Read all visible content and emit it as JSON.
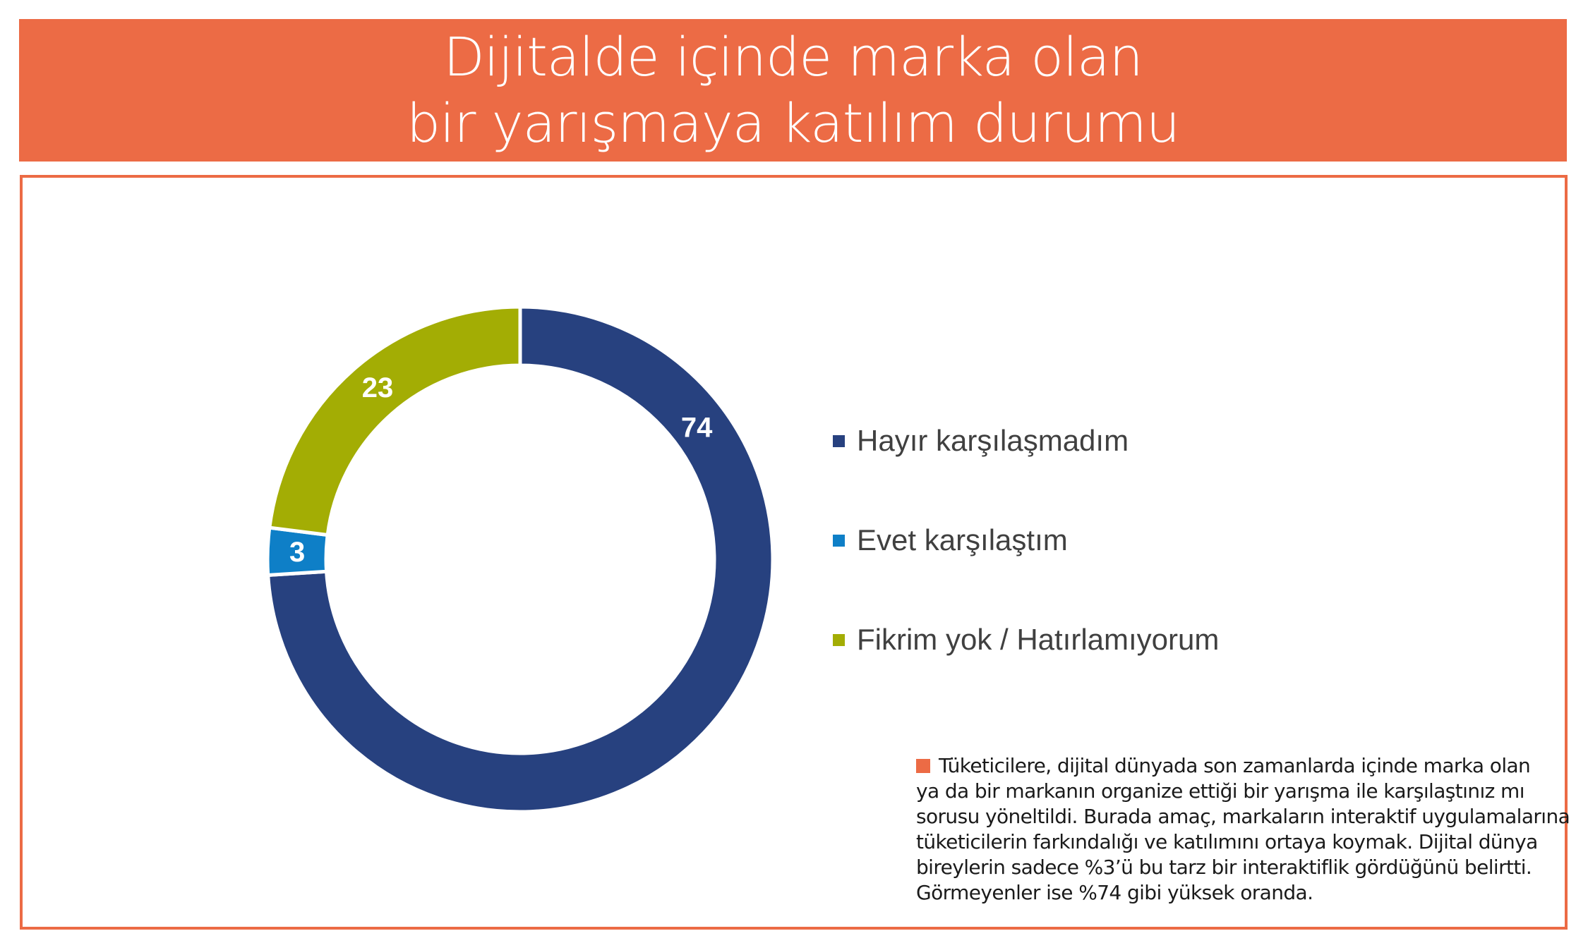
{
  "header": {
    "title_line1": "Dijitalde içinde marka olan",
    "title_line2": "bir yarışmaya katılım durumu"
  },
  "colors": {
    "accent": "#ec6b45",
    "navy": "#27417f",
    "blue": "#0e7fc7",
    "olive": "#a3ad04"
  },
  "chart_data": {
    "type": "pie",
    "variant": "donut",
    "title": "",
    "legend_position": "right",
    "series": [
      {
        "name": "Hayır karşılaşmadım",
        "value": 74,
        "label": "74",
        "color": "#27417f"
      },
      {
        "name": "Evet karşılaştım",
        "value": 3,
        "label": "3",
        "color": "#0e7fc7"
      },
      {
        "name": "Fikrim yok / Hatırlamıyorum",
        "value": 23,
        "label": "23",
        "color": "#a3ad04"
      }
    ]
  },
  "note": {
    "lines": [
      "Tüketicilere, dijital dünyada son zamanlarda içinde marka olan",
      "ya da bir markanın organize ettiği bir yarışma ile karşılaştınız mı",
      "sorusu yöneltildi. Burada amaç, markaların interaktif uygulamalarına",
      "tüketicilerin farkındalığı ve katılımını ortaya koymak. Dijital dünya",
      "bireylerin sadece %3’ü bu tarz bir interaktiflik gördüğünü belirtti.",
      "Görmeyenler ise %74 gibi yüksek oranda."
    ]
  }
}
